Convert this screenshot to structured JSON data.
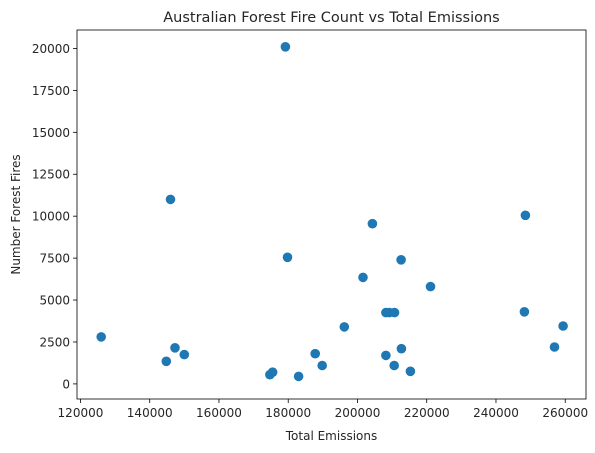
{
  "chart_data": {
    "type": "scatter",
    "title": "Australian Forest Fire Count vs Total Emissions",
    "xlabel": "Total Emissions",
    "ylabel": "Number Forest Fires",
    "xlim": [
      119000,
      266000
    ],
    "ylim": [
      -900,
      21100
    ],
    "xticks": [
      120000,
      140000,
      160000,
      180000,
      200000,
      220000,
      240000,
      260000
    ],
    "yticks": [
      0,
      2500,
      5000,
      7500,
      10000,
      12500,
      15000,
      17500,
      20000
    ],
    "grid": false,
    "marker_color": "#1f77b4",
    "points": [
      {
        "x": 126000,
        "y": 2800
      },
      {
        "x": 144800,
        "y": 1350
      },
      {
        "x": 146000,
        "y": 11000
      },
      {
        "x": 147300,
        "y": 2150
      },
      {
        "x": 150000,
        "y": 1750
      },
      {
        "x": 174700,
        "y": 550
      },
      {
        "x": 175500,
        "y": 700
      },
      {
        "x": 179200,
        "y": 20100
      },
      {
        "x": 179800,
        "y": 7550
      },
      {
        "x": 183000,
        "y": 450
      },
      {
        "x": 187800,
        "y": 1800
      },
      {
        "x": 189800,
        "y": 1100
      },
      {
        "x": 196200,
        "y": 3400
      },
      {
        "x": 201600,
        "y": 6350
      },
      {
        "x": 204300,
        "y": 9550
      },
      {
        "x": 208200,
        "y": 1700
      },
      {
        "x": 208200,
        "y": 4250
      },
      {
        "x": 209200,
        "y": 4250
      },
      {
        "x": 210600,
        "y": 1100
      },
      {
        "x": 210700,
        "y": 4250
      },
      {
        "x": 212600,
        "y": 7400
      },
      {
        "x": 212700,
        "y": 2100
      },
      {
        "x": 215300,
        "y": 750
      },
      {
        "x": 221100,
        "y": 5800
      },
      {
        "x": 248200,
        "y": 4300
      },
      {
        "x": 248500,
        "y": 10050
      },
      {
        "x": 256900,
        "y": 2200
      },
      {
        "x": 259400,
        "y": 3450
      }
    ]
  }
}
